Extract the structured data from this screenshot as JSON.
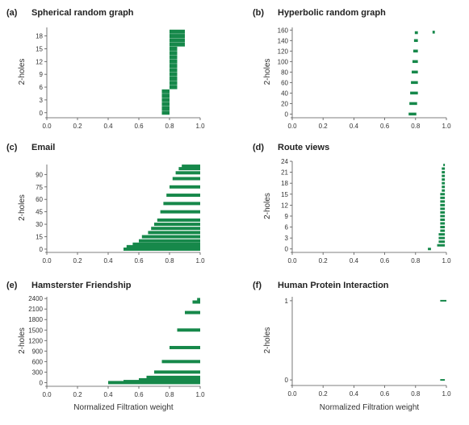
{
  "colors": {
    "bar": "#16884a",
    "axis": "#555555",
    "text": "#222222"
  },
  "chart_data": [
    {
      "type": "barcode",
      "letter": "(a)",
      "title": "Spherical random graph",
      "ylabel": "2-holes",
      "xlabel": "",
      "xlim": [
        0.0,
        1.0
      ],
      "ylim": [
        -0.8,
        20
      ],
      "xticks": [
        "0.0",
        "0.2",
        "0.4",
        "0.6",
        "0.8",
        "1.0"
      ],
      "yticks": [
        0,
        3,
        6,
        9,
        12,
        15,
        18
      ],
      "bars": [
        [
          0.75,
          0.8,
          0
        ],
        [
          0.75,
          0.8,
          1
        ],
        [
          0.75,
          0.8,
          2
        ],
        [
          0.75,
          0.8,
          3
        ],
        [
          0.75,
          0.8,
          4
        ],
        [
          0.75,
          0.8,
          5
        ],
        [
          0.8,
          0.85,
          6
        ],
        [
          0.8,
          0.85,
          7
        ],
        [
          0.8,
          0.85,
          8
        ],
        [
          0.8,
          0.85,
          9
        ],
        [
          0.8,
          0.85,
          10
        ],
        [
          0.8,
          0.85,
          11
        ],
        [
          0.8,
          0.85,
          12
        ],
        [
          0.8,
          0.85,
          13
        ],
        [
          0.8,
          0.85,
          14
        ],
        [
          0.8,
          0.85,
          15
        ],
        [
          0.8,
          0.9,
          16
        ],
        [
          0.8,
          0.9,
          17
        ],
        [
          0.8,
          0.9,
          18
        ],
        [
          0.8,
          0.9,
          19
        ]
      ]
    },
    {
      "type": "barcode",
      "letter": "(b)",
      "title": "Hyperbolic random graph",
      "ylabel": "2-holes",
      "xlabel": "",
      "xlim": [
        0.0,
        1.0
      ],
      "ylim": [
        -4,
        165
      ],
      "xticks": [
        "0.0",
        "0.2",
        "0.4",
        "0.6",
        "0.8",
        "1.0"
      ],
      "yticks": [
        0,
        20,
        40,
        60,
        80,
        100,
        120,
        140,
        160
      ],
      "bars": [
        [
          0.755,
          0.805,
          0
        ],
        [
          0.76,
          0.81,
          20
        ],
        [
          0.765,
          0.815,
          40
        ],
        [
          0.77,
          0.815,
          60
        ],
        [
          0.775,
          0.815,
          80
        ],
        [
          0.78,
          0.815,
          100
        ],
        [
          0.785,
          0.815,
          120
        ],
        [
          0.79,
          0.815,
          140
        ],
        [
          0.795,
          0.815,
          155
        ],
        [
          0.91,
          0.925,
          156
        ]
      ]
    },
    {
      "type": "barcode",
      "letter": "(c)",
      "title": "Email",
      "ylabel": "2-holes",
      "xlabel": "",
      "xlim": [
        0.0,
        1.0
      ],
      "ylim": [
        -2,
        102
      ],
      "xticks": [
        "0.0",
        "0.2",
        "0.4",
        "0.6",
        "0.8",
        "1.0"
      ],
      "yticks": [
        0,
        15,
        30,
        45,
        60,
        75,
        90
      ],
      "bars": [
        [
          0.5,
          1.0,
          0
        ],
        [
          0.52,
          1.0,
          3
        ],
        [
          0.56,
          1.0,
          6
        ],
        [
          0.6,
          1.0,
          10
        ],
        [
          0.62,
          1.0,
          15
        ],
        [
          0.66,
          1.0,
          20
        ],
        [
          0.68,
          1.0,
          25
        ],
        [
          0.7,
          1.0,
          30
        ],
        [
          0.72,
          1.0,
          35
        ],
        [
          0.74,
          1.0,
          45
        ],
        [
          0.76,
          1.0,
          55
        ],
        [
          0.78,
          1.0,
          65
        ],
        [
          0.8,
          1.0,
          75
        ],
        [
          0.82,
          1.0,
          85
        ],
        [
          0.84,
          1.0,
          92
        ],
        [
          0.86,
          1.0,
          97
        ],
        [
          0.88,
          1.0,
          100
        ]
      ]
    },
    {
      "type": "barcode",
      "letter": "(d)",
      "title": "Route views",
      "ylabel": "2-holes",
      "xlabel": "",
      "xlim": [
        0.0,
        1.0
      ],
      "ylim": [
        -0.5,
        24
      ],
      "xticks": [
        "0.0",
        "0.2",
        "0.4",
        "0.6",
        "0.8",
        "1.0"
      ],
      "yticks": [
        0,
        3,
        6,
        9,
        12,
        15,
        18,
        21,
        24
      ],
      "bars": [
        [
          0.88,
          0.9,
          0
        ],
        [
          0.94,
          0.99,
          1
        ],
        [
          0.95,
          0.99,
          2
        ],
        [
          0.95,
          0.99,
          3
        ],
        [
          0.95,
          0.99,
          4
        ],
        [
          0.96,
          0.99,
          5
        ],
        [
          0.96,
          0.99,
          6
        ],
        [
          0.96,
          0.99,
          7
        ],
        [
          0.96,
          0.99,
          8
        ],
        [
          0.96,
          0.99,
          9
        ],
        [
          0.96,
          0.99,
          10
        ],
        [
          0.96,
          0.99,
          11
        ],
        [
          0.96,
          0.99,
          12
        ],
        [
          0.96,
          0.99,
          13
        ],
        [
          0.96,
          0.99,
          14
        ],
        [
          0.96,
          0.99,
          15
        ],
        [
          0.97,
          0.99,
          16
        ],
        [
          0.97,
          0.99,
          17
        ],
        [
          0.97,
          0.99,
          18
        ],
        [
          0.97,
          0.99,
          19
        ],
        [
          0.97,
          0.99,
          20
        ],
        [
          0.97,
          0.99,
          21
        ],
        [
          0.97,
          0.99,
          22
        ],
        [
          0.98,
          0.99,
          23
        ]
      ]
    },
    {
      "type": "barcode",
      "letter": "(e)",
      "title": "Hamsterster Friendship",
      "ylabel": "2-holes",
      "xlabel": "Normalized Filtration weight",
      "xlim": [
        0.0,
        1.0
      ],
      "ylim": [
        -60,
        2450
      ],
      "xticks": [
        "0.0",
        "0.2",
        "0.4",
        "0.6",
        "0.8",
        "1.0"
      ],
      "yticks": [
        0,
        300,
        600,
        900,
        1200,
        1500,
        1800,
        2100,
        2400
      ],
      "bars": [
        [
          0.4,
          1.0,
          0
        ],
        [
          0.5,
          1.0,
          30
        ],
        [
          0.6,
          1.0,
          80
        ],
        [
          0.65,
          1.0,
          150
        ],
        [
          0.7,
          1.0,
          300
        ],
        [
          0.75,
          1.0,
          600
        ],
        [
          0.8,
          1.0,
          1000
        ],
        [
          0.85,
          1.0,
          1500
        ],
        [
          0.9,
          1.0,
          2000
        ],
        [
          0.95,
          1.0,
          2300
        ],
        [
          0.98,
          1.0,
          2370
        ]
      ]
    },
    {
      "type": "barcode",
      "letter": "(f)",
      "title": "Human Protein Interaction",
      "ylabel": "2-holes",
      "xlabel": "Normalized Filtration weight",
      "xlim": [
        0.0,
        1.0
      ],
      "ylim": [
        -0.05,
        1.05
      ],
      "xticks": [
        "0.0",
        "0.2",
        "0.4",
        "0.6",
        "0.8",
        "1.0"
      ],
      "yticks": [
        0,
        1
      ],
      "bars": [
        [
          0.96,
          0.99,
          0
        ],
        [
          0.96,
          1.0,
          1
        ]
      ]
    }
  ]
}
